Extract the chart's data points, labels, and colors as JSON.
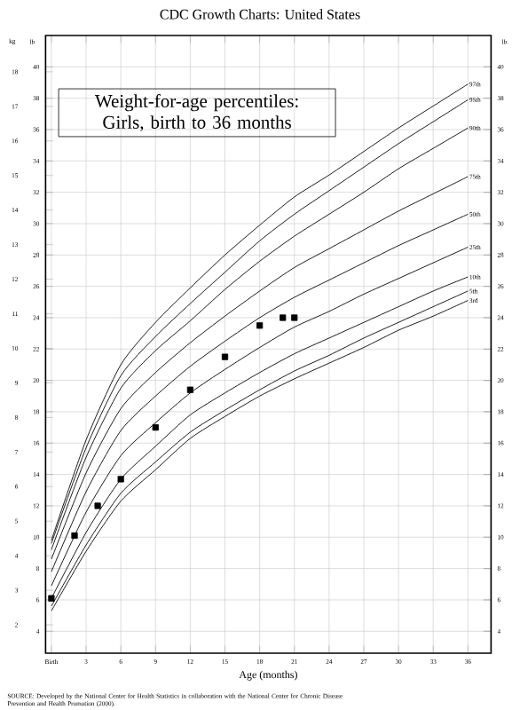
{
  "chart_data": {
    "type": "line",
    "title": "CDC Growth Charts: United States",
    "subtitle": "Weight-for-age percentiles: Girls, birth to 36 months",
    "xlabel": "Age (months)",
    "ylabel": "lb",
    "y2label": "kg",
    "y3label": "lb",
    "annotations": [
      "SOURCE: Developed by the National Center for Health Statistics in collaboration with the National Center for Chronic Disease Prevention and Health Promotion (2000)."
    ],
    "xlim": [
      -0.5,
      38
    ],
    "xticks": [
      {
        "value": 0,
        "label": "Birth"
      },
      3,
      6,
      9,
      12,
      15,
      18,
      21,
      24,
      27,
      30,
      33,
      36
    ],
    "ylim": [
      2.6,
      42
    ],
    "yticks": [
      4,
      6,
      8,
      10,
      12,
      14,
      16,
      18,
      20,
      22,
      24,
      26,
      28,
      30,
      32,
      34,
      36,
      38,
      40
    ],
    "y2lim": [
      1.18,
      19.05
    ],
    "y2ticks": [
      2,
      3,
      4,
      5,
      6,
      7,
      8,
      9,
      10,
      11,
      12,
      13,
      14,
      15,
      16,
      17,
      18
    ],
    "y3lim": [
      2.6,
      42
    ],
    "y3ticks": [
      4,
      6,
      8,
      10,
      12,
      14,
      16,
      18,
      20,
      22,
      24,
      26,
      28,
      30,
      32,
      34,
      36,
      38,
      40
    ],
    "grid": true,
    "marker": "none",
    "line_style": "solid",
    "x": [
      0,
      3,
      6,
      9,
      12,
      15,
      18,
      21,
      24,
      27,
      30,
      33,
      36
    ],
    "series": [
      {
        "name": "97th",
        "color": "#000000",
        "values": [
          9.8,
          16.2,
          21.0,
          23.7,
          25.9,
          28.0,
          29.9,
          31.7,
          33.1,
          34.6,
          36.1,
          37.5,
          38.9
        ]
      },
      {
        "name": "95th",
        "color": "#000000",
        "values": [
          9.6,
          15.7,
          20.3,
          22.8,
          24.9,
          26.9,
          28.9,
          30.6,
          32.1,
          33.6,
          35.1,
          36.5,
          37.9
        ]
      },
      {
        "name": "90th",
        "color": "#000000",
        "values": [
          9.2,
          15.1,
          19.5,
          21.9,
          23.8,
          25.8,
          27.6,
          29.2,
          30.6,
          32.0,
          33.5,
          34.8,
          36.1
        ]
      },
      {
        "name": "75th",
        "color": "#000000",
        "values": [
          8.6,
          14.1,
          18.2,
          20.5,
          22.4,
          24.1,
          25.7,
          27.2,
          28.4,
          29.6,
          30.8,
          31.9,
          33.0
        ]
      },
      {
        "name": "50th",
        "color": "#000000",
        "values": [
          7.8,
          12.9,
          16.8,
          19.0,
          20.9,
          22.5,
          24.0,
          25.3,
          26.4,
          27.5,
          28.6,
          29.6,
          30.6
        ]
      },
      {
        "name": "25th",
        "color": "#000000",
        "values": [
          6.9,
          11.6,
          15.2,
          17.3,
          19.2,
          20.7,
          22.1,
          23.4,
          24.4,
          25.5,
          26.5,
          27.5,
          28.5
        ]
      },
      {
        "name": "10th",
        "color": "#000000",
        "values": [
          6.1,
          10.3,
          13.7,
          15.8,
          17.8,
          19.2,
          20.5,
          21.7,
          22.7,
          23.7,
          24.7,
          25.7,
          26.6
        ]
      },
      {
        "name": "5th",
        "color": "#000000",
        "values": [
          5.6,
          9.5,
          12.8,
          14.8,
          16.7,
          18.1,
          19.4,
          20.6,
          21.6,
          22.7,
          23.7,
          24.7,
          25.7
        ]
      },
      {
        "name": "3rd",
        "color": "#000000",
        "values": [
          5.3,
          9.1,
          12.3,
          14.3,
          16.3,
          17.7,
          19.0,
          20.1,
          21.1,
          22.1,
          23.2,
          24.1,
          25.1
        ]
      },
      {
        "type": "scatter",
        "marker": "square",
        "color": "#000000",
        "x": [
          0,
          2,
          4,
          6,
          9,
          12,
          15,
          18,
          20,
          21
        ],
        "values": [
          6.1,
          10.1,
          12.0,
          13.7,
          17.0,
          19.4,
          21.5,
          23.5,
          24.0,
          24.0
        ]
      }
    ]
  }
}
